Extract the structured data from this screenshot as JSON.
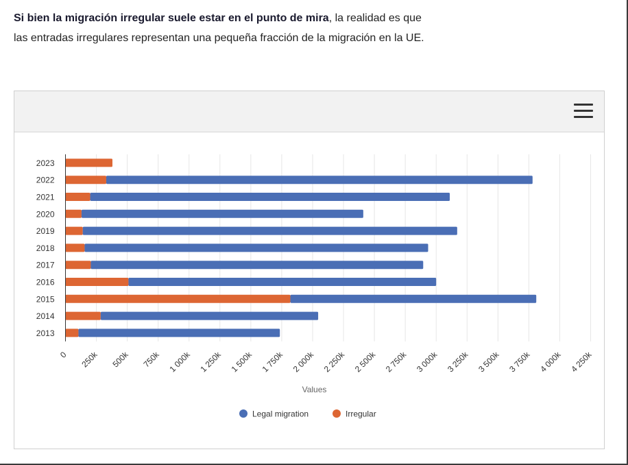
{
  "intro": {
    "bold": "Si bien la migración irregular suele estar en el punto de mira",
    "rest": ", la realidad es que las entradas irregulares representan una pequeña fracción de la migración en la UE."
  },
  "chart_data": {
    "type": "bar",
    "orientation": "horizontal",
    "stacked": true,
    "categories": [
      "2023",
      "2022",
      "2021",
      "2020",
      "2019",
      "2018",
      "2017",
      "2016",
      "2015",
      "2014",
      "2013"
    ],
    "series": [
      {
        "name": "Irregular",
        "color": "#dd6633",
        "values": [
          380000,
          330000,
          200000,
          130000,
          140000,
          155000,
          205000,
          510000,
          1820000,
          285000,
          105000
        ]
      },
      {
        "name": "Legal migration",
        "color": "#4a6eb5",
        "values": [
          0,
          3450000,
          2910000,
          2280000,
          3030000,
          2780000,
          2690000,
          2490000,
          1990000,
          1760000,
          1630000
        ]
      }
    ],
    "xticks": [
      "0",
      "250k",
      "500k",
      "750k",
      "1 000k",
      "1 250k",
      "1 500k",
      "1 750k",
      "2 000k",
      "2 250k",
      "2 500k",
      "2 750k",
      "3 000k",
      "3 250k",
      "3 500k",
      "3 750k",
      "4 000k",
      "4 250k"
    ],
    "xlim": [
      0,
      4250000
    ],
    "xlabel": "Values",
    "grid": true,
    "legend_position": "bottom",
    "legend": [
      "Legal migration",
      "Irregular"
    ]
  }
}
